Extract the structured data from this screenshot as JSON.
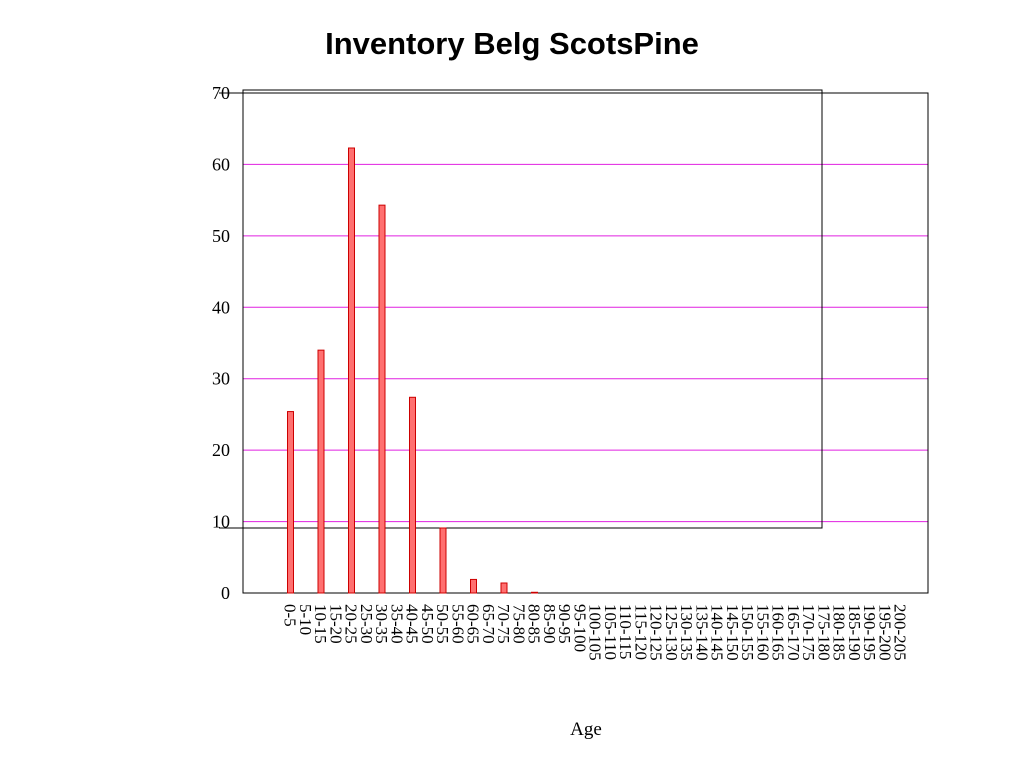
{
  "chart_data": {
    "type": "bar",
    "title": "Inventory Belg ScotsPine",
    "xlabel": "Age",
    "ylabel": "",
    "ylim": [
      0,
      70
    ],
    "yticks": [
      0,
      10,
      20,
      30,
      40,
      50,
      60,
      70
    ],
    "grid": true,
    "legend": "none",
    "categories": [
      "0-5",
      "5-10",
      "10-15",
      "15-20",
      "20-25",
      "25-30",
      "30-35",
      "35-40",
      "40-45",
      "45-50",
      "50-55",
      "55-60",
      "60-65",
      "65-70",
      "70-75",
      "75-80",
      "80-85",
      "85-90",
      "90-95",
      "95-100",
      "100-105",
      "105-110",
      "110-115",
      "115-120",
      "120-125",
      "125-130",
      "130-135",
      "135-140",
      "140-145",
      "145-150",
      "150-155",
      "155-160",
      "160-165",
      "165-170",
      "170-175",
      "175-180",
      "180-185",
      "185-190",
      "190-195",
      "195-200",
      "200-205"
    ],
    "values": [
      25.4,
      0,
      34.0,
      0,
      62.3,
      0,
      54.3,
      0,
      27.4,
      0,
      9.1,
      0,
      1.9,
      0,
      1.4,
      0,
      0.1,
      0,
      0,
      0,
      0,
      0,
      0,
      0,
      0,
      0,
      0,
      0,
      0,
      0,
      0,
      0,
      0,
      0,
      0,
      0,
      0,
      0,
      0,
      0,
      0
    ],
    "colors": {
      "bar_fill": "#ff7070",
      "bar_stroke": "#cc0000",
      "grid": "#e020e0",
      "frame": "#000000"
    }
  }
}
